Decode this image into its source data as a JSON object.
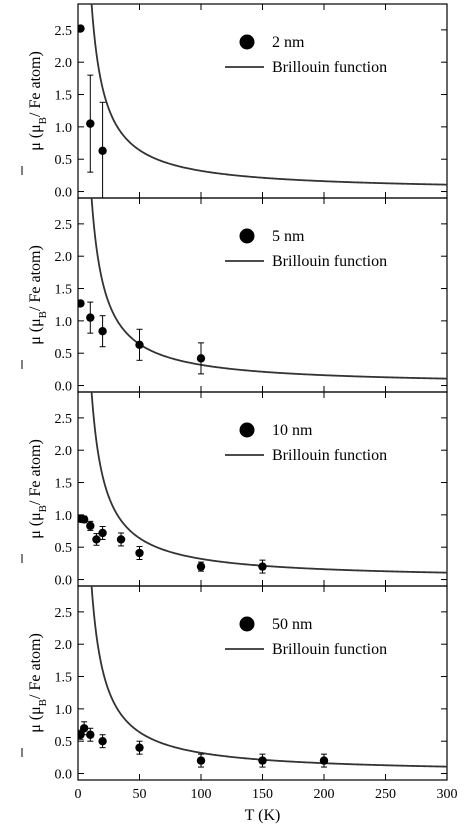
{
  "chart_data": {
    "type": "scatter",
    "xlabel": "T (K)",
    "ylabel_main": "μ (μ",
    "ylabel_sub": "B",
    "ylabel_tail": "/ Fe atom)",
    "xlim": [
      0,
      300
    ],
    "ylim": [
      -0.1,
      2.9
    ],
    "xticks": [
      0,
      50,
      100,
      150,
      200,
      250,
      300
    ],
    "yticks": [
      0.0,
      0.5,
      1.0,
      1.5,
      2.0,
      2.5
    ],
    "brillouin_label": "Brillouin function",
    "brillouin_constant": 32,
    "panels": [
      {
        "label": "2 nm",
        "points": [
          {
            "x": 2,
            "y": 2.52,
            "err": 0.0
          },
          {
            "x": 10,
            "y": 1.05,
            "err": 0.75
          },
          {
            "x": 20,
            "y": 0.63,
            "err": 0.75
          }
        ]
      },
      {
        "label": "5 nm",
        "points": [
          {
            "x": 2,
            "y": 1.27,
            "err": 0.0
          },
          {
            "x": 10,
            "y": 1.05,
            "err": 0.24
          },
          {
            "x": 20,
            "y": 0.84,
            "err": 0.24
          },
          {
            "x": 50,
            "y": 0.63,
            "err": 0.24
          },
          {
            "x": 100,
            "y": 0.42,
            "err": 0.24
          }
        ]
      },
      {
        "label": "10 nm",
        "points": [
          {
            "x": 2,
            "y": 0.94,
            "err": 0.05
          },
          {
            "x": 5,
            "y": 0.93,
            "err": 0.05
          },
          {
            "x": 10,
            "y": 0.83,
            "err": 0.07
          },
          {
            "x": 15,
            "y": 0.62,
            "err": 0.09
          },
          {
            "x": 20,
            "y": 0.72,
            "err": 0.1
          },
          {
            "x": 35,
            "y": 0.62,
            "err": 0.1
          },
          {
            "x": 50,
            "y": 0.41,
            "err": 0.1
          },
          {
            "x": 100,
            "y": 0.2,
            "err": 0.07
          },
          {
            "x": 150,
            "y": 0.2,
            "err": 0.1
          }
        ]
      },
      {
        "label": "50 nm",
        "points": [
          {
            "x": 2,
            "y": 0.6,
            "err": 0.07
          },
          {
            "x": 5,
            "y": 0.7,
            "err": 0.1
          },
          {
            "x": 10,
            "y": 0.6,
            "err": 0.1
          },
          {
            "x": 20,
            "y": 0.5,
            "err": 0.1
          },
          {
            "x": 50,
            "y": 0.4,
            "err": 0.1
          },
          {
            "x": 100,
            "y": 0.2,
            "err": 0.1
          },
          {
            "x": 150,
            "y": 0.2,
            "err": 0.1
          },
          {
            "x": 200,
            "y": 0.2,
            "err": 0.1
          }
        ]
      }
    ]
  }
}
